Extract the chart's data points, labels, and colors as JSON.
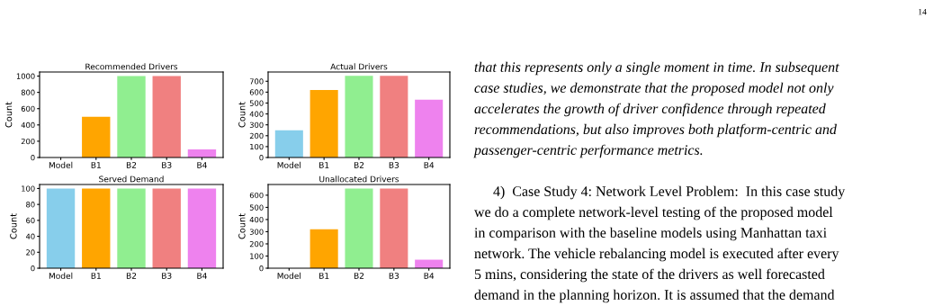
{
  "chart_data": [
    {
      "type": "bar",
      "title": "Recommended Drivers",
      "ylabel": "Count",
      "categories": [
        "Model",
        "B1",
        "B2",
        "B3",
        "B4"
      ],
      "values": [
        0,
        500,
        1000,
        1000,
        100
      ],
      "colors": [
        "#87ceeb",
        "#ffa500",
        "#90ee90",
        "#f08080",
        "#ee82ee"
      ],
      "ylim": [
        0,
        1050
      ],
      "yticks": [
        0,
        200,
        400,
        600,
        800,
        1000
      ],
      "grid": false
    },
    {
      "type": "bar",
      "title": "Actual Drivers",
      "ylabel": "Count",
      "categories": [
        "Model",
        "B1",
        "B2",
        "B3",
        "B4"
      ],
      "values": [
        250,
        620,
        750,
        750,
        530
      ],
      "colors": [
        "#87ceeb",
        "#ffa500",
        "#90ee90",
        "#f08080",
        "#ee82ee"
      ],
      "ylim": [
        0,
        785
      ],
      "yticks": [
        0,
        100,
        200,
        300,
        400,
        500,
        600,
        700
      ],
      "grid": false
    },
    {
      "type": "bar",
      "title": "Served Demand",
      "ylabel": "Count",
      "categories": [
        "Model",
        "B1",
        "B2",
        "B3",
        "B4"
      ],
      "values": [
        100,
        100,
        100,
        100,
        100
      ],
      "colors": [
        "#87ceeb",
        "#ffa500",
        "#90ee90",
        "#f08080",
        "#ee82ee"
      ],
      "ylim": [
        0,
        105
      ],
      "yticks": [
        0,
        20,
        40,
        60,
        80,
        100
      ],
      "grid": false
    },
    {
      "type": "bar",
      "title": "Unallocated Drivers",
      "ylabel": "Count",
      "categories": [
        "Model",
        "B1",
        "B2",
        "B3",
        "B4"
      ],
      "values": [
        0,
        320,
        655,
        655,
        70
      ],
      "colors": [
        "#87ceeb",
        "#ffa500",
        "#90ee90",
        "#f08080",
        "#ee82ee"
      ],
      "ylim": [
        0,
        688
      ],
      "yticks": [
        0,
        100,
        200,
        300,
        400,
        500,
        600
      ],
      "grid": false
    },
    {
      "type": "other",
      "annotations": [
        "14",
        "that this represents only a single moment in time. In subsequent",
        "case studies, we demonstrate that the proposed model not only",
        "accelerates the growth of driver confidence through repeated",
        "recommendations, but also improves both platform-centric and",
        "passenger-centric performance metrics.",
        "4)  Case Study 4: Network Level Problem:  In this case study",
        "we do a complete network-level testing of the proposed model",
        "in comparison with the baseline models using Manhattan taxi",
        "network. The vehicle rebalancing model is executed after every",
        "5 mins, considering the state of the drivers as well forecasted",
        "demand in the planning horizon. It is assumed that the demand"
      ]
    }
  ]
}
